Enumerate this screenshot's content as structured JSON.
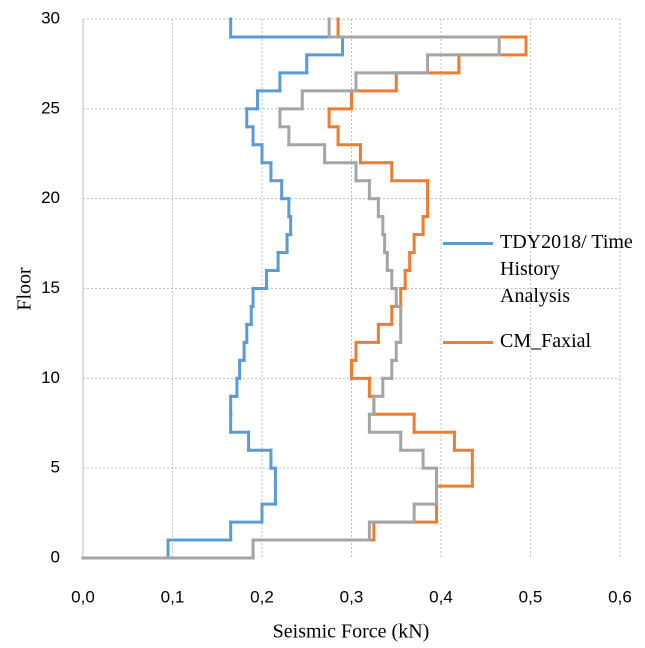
{
  "chart_data": {
    "type": "step",
    "xlabel": "Seismic Force (kN)",
    "ylabel": "Floor",
    "y_edges": [
      0,
      1,
      2,
      3,
      4,
      5,
      6,
      7,
      8,
      9,
      10,
      11,
      12,
      13,
      14,
      15,
      16,
      17,
      18,
      19,
      20,
      21,
      22,
      23,
      24,
      25,
      26,
      27,
      28,
      29,
      30
    ],
    "series": [
      {
        "name": "TDY2018/ Time History Analysis",
        "color": "#5b9bd5",
        "values": [
          0.095,
          0.165,
          0.2,
          0.215,
          0.215,
          0.21,
          0.185,
          0.165,
          0.165,
          0.172,
          0.175,
          0.18,
          0.183,
          0.188,
          0.19,
          0.205,
          0.218,
          0.228,
          0.232,
          0.23,
          0.222,
          0.21,
          0.2,
          0.19,
          0.183,
          0.195,
          0.22,
          0.25,
          0.29,
          0.165
        ]
      },
      {
        "name": "CM_Faxial",
        "color": "#ed7d31",
        "values": [
          0.19,
          0.325,
          0.395,
          0.395,
          0.435,
          0.435,
          0.415,
          0.37,
          0.325,
          0.32,
          0.3,
          0.305,
          0.33,
          0.345,
          0.355,
          0.36,
          0.365,
          0.37,
          0.38,
          0.385,
          0.385,
          0.345,
          0.31,
          0.285,
          0.275,
          0.3,
          0.35,
          0.42,
          0.495,
          0.285
        ]
      },
      {
        "color": "#a5a5a5",
        "values": [
          0.19,
          0.32,
          0.37,
          0.395,
          0.395,
          0.38,
          0.355,
          0.32,
          0.325,
          0.335,
          0.345,
          0.35,
          0.355,
          0.355,
          0.35,
          0.345,
          0.34,
          0.337,
          0.335,
          0.33,
          0.32,
          0.305,
          0.27,
          0.23,
          0.22,
          0.245,
          0.305,
          0.385,
          0.465,
          0.275
        ]
      }
    ],
    "xlim": [
      0,
      0.6
    ],
    "xticks": [
      {
        "value": 0,
        "label": "0,0"
      },
      {
        "value": 0.1,
        "label": "0,1"
      },
      {
        "value": 0.2,
        "label": "0,2"
      },
      {
        "value": 0.3,
        "label": "0,3"
      },
      {
        "value": 0.4,
        "label": "0,4"
      },
      {
        "value": 0.5,
        "label": "0,5"
      },
      {
        "value": 0.6,
        "label": "0,6"
      }
    ],
    "ylim": [
      0,
      30
    ],
    "yticks": [
      0,
      5,
      10,
      15,
      20,
      25,
      30
    ],
    "grid": true,
    "legend": "right"
  }
}
